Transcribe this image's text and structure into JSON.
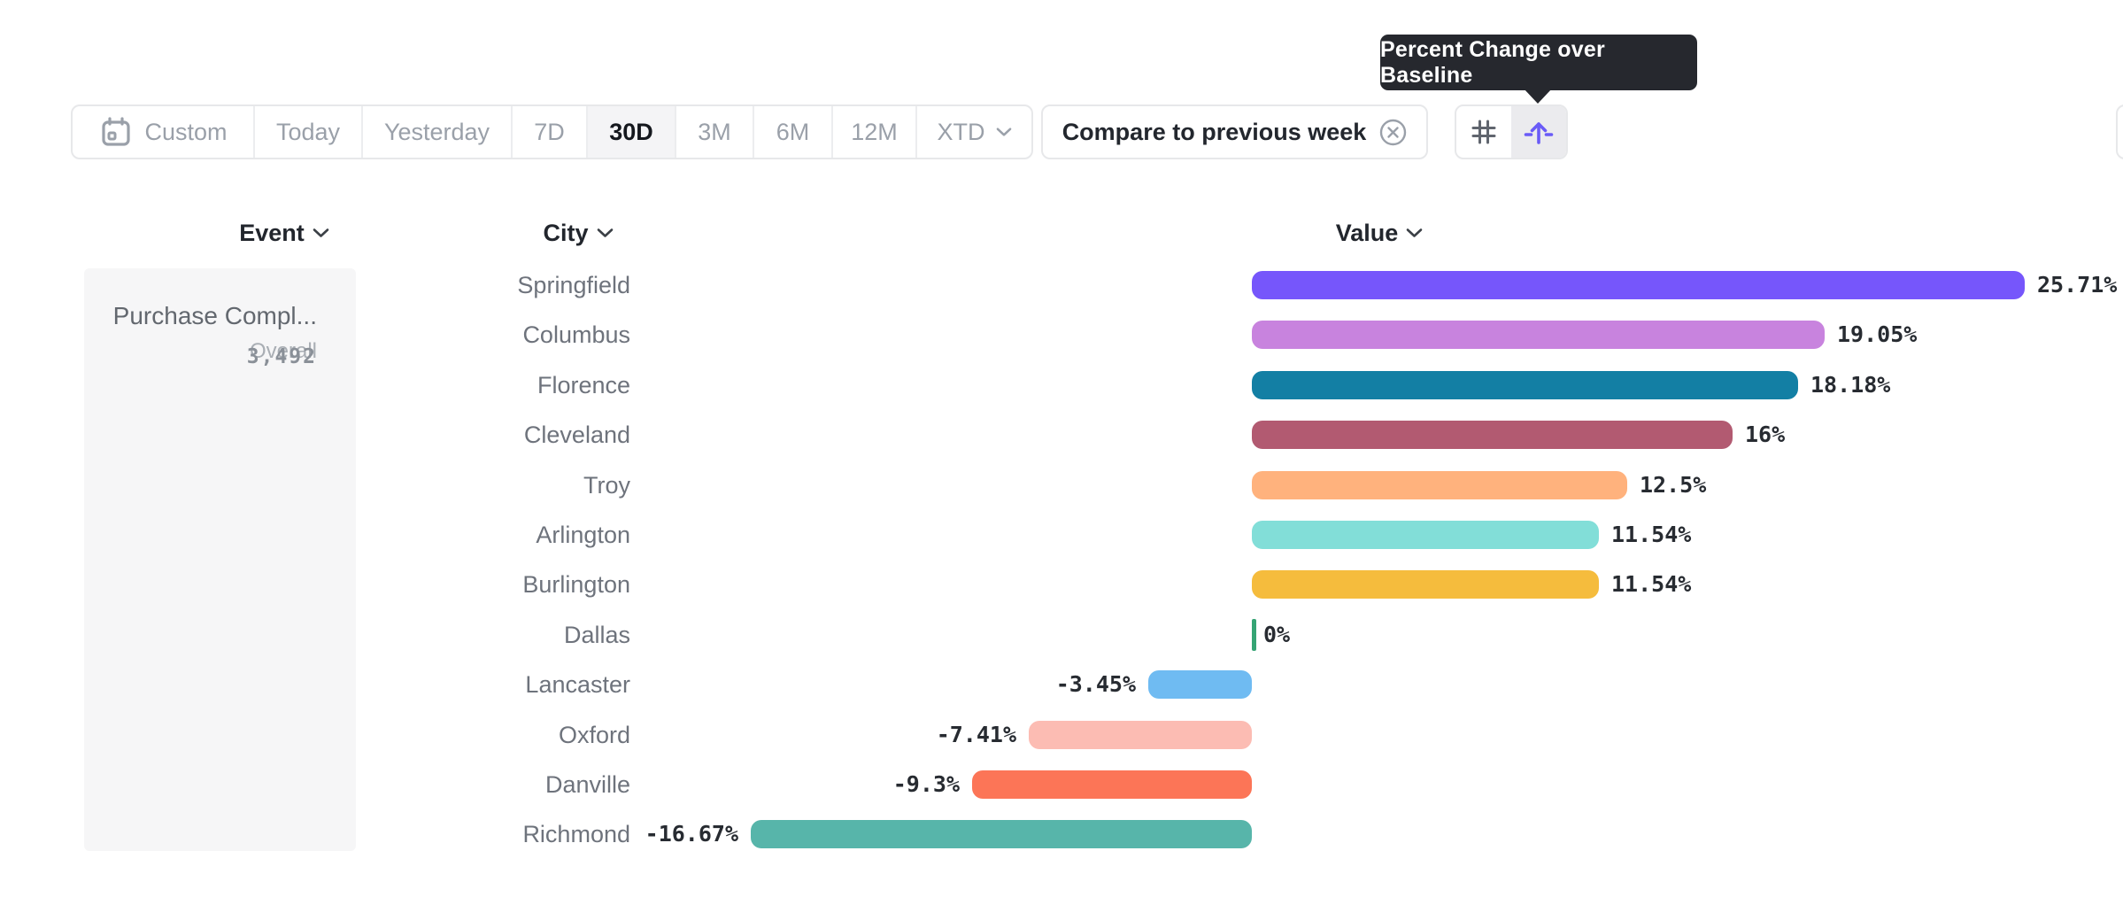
{
  "tooltip": {
    "text": "Percent Change over Baseline"
  },
  "toolbar": {
    "date_ranges": [
      {
        "label": "Custom",
        "icon": "calendar",
        "selected": false
      },
      {
        "label": "Today",
        "selected": false
      },
      {
        "label": "Yesterday",
        "selected": false
      },
      {
        "label": "7D",
        "selected": false
      },
      {
        "label": "30D",
        "selected": true
      },
      {
        "label": "3M",
        "selected": false
      },
      {
        "label": "6M",
        "selected": false
      },
      {
        "label": "12M",
        "selected": false
      },
      {
        "label": "XTD",
        "chevron": true,
        "selected": false
      }
    ],
    "compare_label": "Compare to previous week",
    "view_toggles": [
      {
        "icon": "grid-icon",
        "selected": false
      },
      {
        "icon": "baseline-arrow-icon",
        "selected": true
      }
    ]
  },
  "table": {
    "columns": [
      {
        "label": "Event"
      },
      {
        "label": "City"
      },
      {
        "label": "Value"
      }
    ],
    "event_cell": {
      "name": "Purchase Compl...",
      "overall_label": "Overall",
      "overall_value": "3,492"
    }
  },
  "chart_data": {
    "type": "bar",
    "orientation": "horizontal",
    "title": "Percent Change over Baseline",
    "categories": [
      "Springfield",
      "Columbus",
      "Florence",
      "Cleveland",
      "Troy",
      "Arlington",
      "Burlington",
      "Dallas",
      "Lancaster",
      "Oxford",
      "Danville",
      "Richmond"
    ],
    "values": [
      25.71,
      19.05,
      18.18,
      16,
      12.5,
      11.54,
      11.54,
      0,
      -3.45,
      -7.41,
      -9.3,
      -16.67
    ],
    "labels": [
      "25.71%",
      "19.05%",
      "18.18%",
      "16%",
      "12.5%",
      "11.54%",
      "11.54%",
      "0%",
      "-3.45%",
      "-7.41%",
      "-9.3%",
      "-16.67%"
    ],
    "colors": [
      "#7656fb",
      "#c883de",
      "#137fa4",
      "#b25a71",
      "#ffb27d",
      "#82ded8",
      "#f5bc3d",
      "#35a474",
      "#6fbbf2",
      "#fcbcb3",
      "#fc7557",
      "#57b5aa"
    ],
    "baseline": 0,
    "xlim": [
      -16.67,
      25.71
    ],
    "value_suffix": "%",
    "grid": false,
    "legend": false
  },
  "colors": {
    "accent_purple": "#6a5bf7",
    "tooltip_bg": "#26282e",
    "pill_border": "#e7e8ea",
    "selected_segment_bg": "#f4f4f6",
    "muted_text": "#9aa0a9",
    "city_text": "#6e737c",
    "value_text": "#272b31",
    "card_bg": "#f6f6f7",
    "zero_tick_green": "#35a474"
  }
}
